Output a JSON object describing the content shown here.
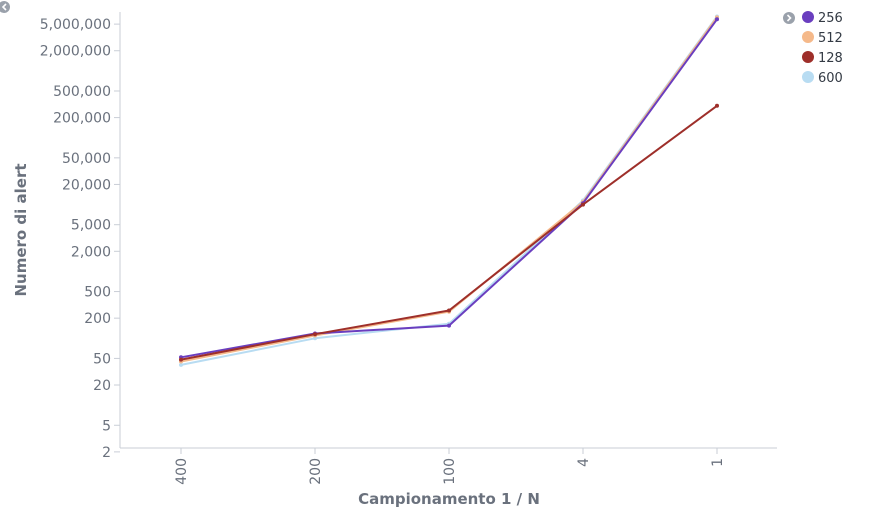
{
  "chart_data": {
    "type": "line",
    "xlabel": "Campionamento 1 / N",
    "ylabel": "Numero di alert",
    "y_scale": "log",
    "ylim": [
      1,
      10000000
    ],
    "categories": [
      "400",
      "200",
      "100",
      "4",
      "1"
    ],
    "y_ticks": [
      {
        "value": 5000000,
        "label": "5,000,000"
      },
      {
        "value": 2000000,
        "label": "2,000,000"
      },
      {
        "value": 500000,
        "label": "500,000"
      },
      {
        "value": 200000,
        "label": "200,000"
      },
      {
        "value": 50000,
        "label": "50,000"
      },
      {
        "value": 20000,
        "label": "20,000"
      },
      {
        "value": 5000,
        "label": "5,000"
      },
      {
        "value": 2000,
        "label": "2,000"
      },
      {
        "value": 500,
        "label": "500"
      },
      {
        "value": 200,
        "label": "200"
      },
      {
        "value": 50,
        "label": "50"
      },
      {
        "value": 20,
        "label": "20"
      },
      {
        "value": 5,
        "label": "5"
      },
      {
        "value": 2,
        "label": "2"
      }
    ],
    "grid": false,
    "legend_position": "top-right",
    "series": [
      {
        "name": "256",
        "color": "#6a3ebf",
        "values": [
          52,
          118,
          155,
          10500,
          5900000
        ]
      },
      {
        "name": "512",
        "color": "#f5b98a",
        "values": [
          45,
          110,
          250,
          11000,
          6300000
        ]
      },
      {
        "name": "128",
        "color": "#9e2f2a",
        "values": [
          48,
          115,
          260,
          10000,
          300000
        ]
      },
      {
        "name": "600",
        "color": "#b8dcf2",
        "values": [
          40,
          100,
          165,
          11500,
          6500000
        ]
      }
    ]
  },
  "controls": {
    "collapse_icon": "chevron-left-icon",
    "legend_toggle_icon": "chevron-right-icon"
  }
}
